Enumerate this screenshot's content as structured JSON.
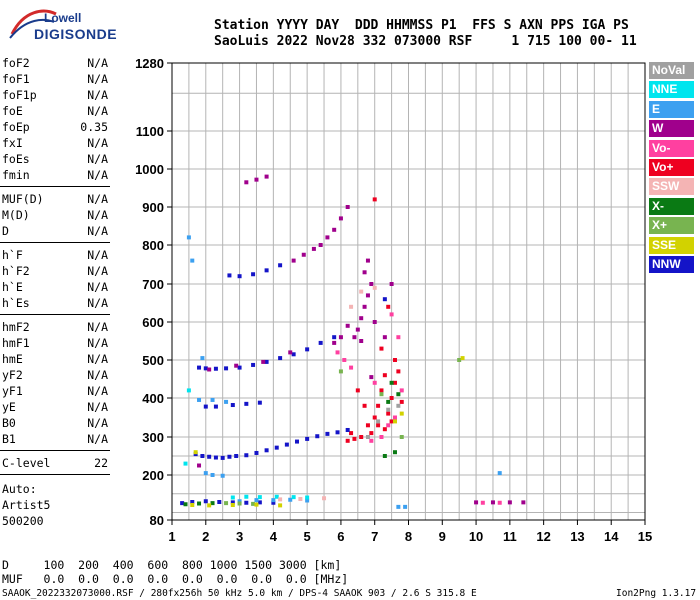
{
  "logo": {
    "line1": "Lowell",
    "line2": "DIGISONDE"
  },
  "header": {
    "row1": "Station YYYY DAY  DDD HHMMSS P1  FFS S AXN PPS IGA PS",
    "row2": "SaoLuis 2022 Nov28 332 073000 RSF     1 715 100 00- 11"
  },
  "params_group1": [
    {
      "label": "foF2",
      "value": "N/A"
    },
    {
      "label": "foF1",
      "value": "N/A"
    },
    {
      "label": "foF1p",
      "value": "N/A"
    },
    {
      "label": "foE",
      "value": "N/A"
    },
    {
      "label": "foEp",
      "value": "0.35"
    },
    {
      "label": "fxI",
      "value": "N/A"
    },
    {
      "label": "foEs",
      "value": "N/A"
    },
    {
      "label": "fmin",
      "value": "N/A"
    }
  ],
  "params_group2": [
    {
      "label": "MUF(D)",
      "value": "N/A"
    },
    {
      "label": "M(D)",
      "value": "N/A"
    },
    {
      "label": "D",
      "value": "N/A"
    }
  ],
  "params_group3": [
    {
      "label": "h`F",
      "value": "N/A"
    },
    {
      "label": "h`F2",
      "value": "N/A"
    },
    {
      "label": "h`E",
      "value": "N/A"
    },
    {
      "label": "h`Es",
      "value": "N/A"
    }
  ],
  "params_group4": [
    {
      "label": "hmF2",
      "value": "N/A"
    },
    {
      "label": "hmF1",
      "value": "N/A"
    },
    {
      "label": "hmE",
      "value": "N/A"
    },
    {
      "label": "yF2",
      "value": "N/A"
    },
    {
      "label": "yF1",
      "value": "N/A"
    },
    {
      "label": "yE",
      "value": "N/A"
    },
    {
      "label": "B0",
      "value": "N/A"
    },
    {
      "label": "B1",
      "value": "N/A"
    }
  ],
  "params_group5": [
    {
      "label": "C-level",
      "value": "22"
    }
  ],
  "autoscaling": [
    "Auto:",
    "Artist5",
    "500200"
  ],
  "legend": [
    {
      "label": "NoVal",
      "color": "#a0a0a0"
    },
    {
      "label": "NNE",
      "color": "#00e5ee"
    },
    {
      "label": "E",
      "color": "#3ca0f0"
    },
    {
      "label": "W",
      "color": "#a0008c"
    },
    {
      "label": "Vo-",
      "color": "#ff40a0"
    },
    {
      "label": "Vo+",
      "color": "#ee0020"
    },
    {
      "label": "SSW",
      "color": "#f4b4b4"
    },
    {
      "label": "X-",
      "color": "#0a7a14"
    },
    {
      "label": "X+",
      "color": "#78b450"
    },
    {
      "label": "SSE",
      "color": "#d2d200"
    },
    {
      "label": "NNW",
      "color": "#1414c8"
    }
  ],
  "bottom": {
    "d_row": "D     100  200  400  600  800 1000 1500 3000 [km]",
    "muf_row": "MUF   0.0  0.0  0.0  0.0  0.0  0.0  0.0  0.0 [MHz]"
  },
  "footer": {
    "left": "SAAOK_2022332073000.RSF / 280fx256h 50 kHz 5.0 km / DPS-4 SAAOK 903 / 2.6 S 315.8 E",
    "right": "Ion2Png 1.3.17"
  },
  "chart_data": {
    "type": "scatter",
    "title": "",
    "xlabel": "",
    "ylabel": "",
    "xlim": [
      1,
      15
    ],
    "ylim": [
      80,
      1280
    ],
    "x_ticks": [
      "1",
      "2",
      "3",
      "4",
      "5",
      "6",
      "7",
      "8",
      "9",
      "10",
      "11",
      "12",
      "13",
      "14",
      "15"
    ],
    "y_ticks": [
      {
        "value": 1280,
        "label": "1280"
      },
      {
        "value": 1100,
        "label": "1100"
      },
      {
        "value": 1000,
        "label": "1000"
      },
      {
        "value": 900,
        "label": "900"
      },
      {
        "value": 800,
        "label": "800"
      },
      {
        "value": 700,
        "label": "700"
      },
      {
        "value": 600,
        "label": "600"
      },
      {
        "value": 500,
        "label": "500"
      },
      {
        "value": 400,
        "label": "400"
      },
      {
        "value": 300,
        "label": "300"
      },
      {
        "value": 200,
        "label": "200"
      },
      {
        "value": 80,
        "label": "80"
      }
    ],
    "y_grid": [
      1200,
      1100,
      1000,
      900,
      800,
      700,
      600,
      500,
      400,
      300,
      250,
      200,
      150,
      100
    ],
    "x_grid": [
      1.5,
      2,
      2.5,
      3,
      3.5,
      4,
      4.5,
      5,
      5.5,
      6,
      6.5,
      7,
      7.5,
      8,
      8.5,
      9,
      9.5,
      10,
      10.5,
      11,
      11.5,
      12,
      12.5,
      13,
      13.5,
      14,
      14.5
    ],
    "series": [
      {
        "name": "Vo+",
        "color": "#ee0020",
        "points": [
          [
            7.0,
            350
          ],
          [
            7.1,
            380
          ],
          [
            7.2,
            420
          ],
          [
            7.3,
            460
          ],
          [
            7.4,
            360
          ],
          [
            7.5,
            400
          ],
          [
            7.6,
            440
          ],
          [
            7.7,
            470
          ],
          [
            7.8,
            390
          ],
          [
            7.1,
            330
          ],
          [
            7.3,
            320
          ],
          [
            7.5,
            340
          ],
          [
            6.8,
            330
          ],
          [
            6.9,
            310
          ],
          [
            6.6,
            300
          ],
          [
            6.4,
            295
          ],
          [
            6.2,
            290
          ],
          [
            7.0,
            920
          ],
          [
            7.4,
            640
          ],
          [
            7.2,
            530
          ],
          [
            7.6,
            500
          ],
          [
            6.5,
            420
          ],
          [
            6.7,
            380
          ],
          [
            6.3,
            310
          ]
        ]
      },
      {
        "name": "NNW",
        "color": "#1414c8",
        "points": [
          [
            1.7,
            255
          ],
          [
            1.9,
            250
          ],
          [
            2.1,
            248
          ],
          [
            2.3,
            246
          ],
          [
            2.5,
            245
          ],
          [
            2.7,
            248
          ],
          [
            2.9,
            250
          ],
          [
            3.2,
            252
          ],
          [
            3.5,
            258
          ],
          [
            3.8,
            265
          ],
          [
            4.1,
            272
          ],
          [
            4.4,
            280
          ],
          [
            4.7,
            288
          ],
          [
            5.0,
            295
          ],
          [
            5.3,
            302
          ],
          [
            5.6,
            308
          ],
          [
            5.9,
            312
          ],
          [
            6.2,
            318
          ],
          [
            1.8,
            480
          ],
          [
            2.0,
            478
          ],
          [
            2.3,
            477
          ],
          [
            2.6,
            478
          ],
          [
            3.0,
            480
          ],
          [
            3.4,
            487
          ],
          [
            3.8,
            495
          ],
          [
            4.2,
            505
          ],
          [
            4.6,
            515
          ],
          [
            5.0,
            528
          ],
          [
            5.4,
            545
          ],
          [
            5.8,
            560
          ],
          [
            2.0,
            378
          ],
          [
            2.3,
            378
          ],
          [
            2.8,
            382
          ],
          [
            3.2,
            385
          ],
          [
            3.6,
            388
          ],
          [
            2.7,
            722
          ],
          [
            3.0,
            720
          ],
          [
            3.4,
            725
          ],
          [
            3.8,
            735
          ],
          [
            4.2,
            748
          ],
          [
            1.3,
            125
          ],
          [
            1.6,
            128
          ],
          [
            2.0,
            130
          ],
          [
            2.4,
            128
          ],
          [
            2.8,
            127
          ],
          [
            3.2,
            126
          ],
          [
            3.6,
            127
          ],
          [
            4.0,
            126
          ],
          [
            7.3,
            660
          ]
        ]
      },
      {
        "name": "W",
        "color": "#a0008c",
        "points": [
          [
            6.5,
            580
          ],
          [
            6.6,
            610
          ],
          [
            6.7,
            640
          ],
          [
            6.8,
            670
          ],
          [
            6.9,
            700
          ],
          [
            6.6,
            550
          ],
          [
            6.4,
            560
          ],
          [
            6.2,
            590
          ],
          [
            6.0,
            560
          ],
          [
            5.8,
            545
          ],
          [
            6.8,
            760
          ],
          [
            6.7,
            730
          ],
          [
            5.6,
            820
          ],
          [
            5.8,
            840
          ],
          [
            6.0,
            870
          ],
          [
            6.2,
            900
          ],
          [
            5.2,
            790
          ],
          [
            5.4,
            800
          ],
          [
            4.6,
            760
          ],
          [
            4.9,
            775
          ],
          [
            3.2,
            965
          ],
          [
            3.5,
            972
          ],
          [
            3.8,
            980
          ],
          [
            6.9,
            455
          ],
          [
            7.0,
            600
          ],
          [
            2.9,
            485
          ],
          [
            3.7,
            495
          ],
          [
            4.5,
            520
          ],
          [
            2.1,
            475
          ],
          [
            1.8,
            225
          ],
          [
            10.0,
            127
          ],
          [
            10.5,
            127
          ],
          [
            11.0,
            127
          ],
          [
            11.4,
            127
          ],
          [
            7.5,
            700
          ],
          [
            7.3,
            560
          ]
        ]
      },
      {
        "name": "Vo-",
        "color": "#ff40a0",
        "points": [
          [
            7.2,
            300
          ],
          [
            7.4,
            330
          ],
          [
            7.6,
            350
          ],
          [
            6.9,
            290
          ],
          [
            7.5,
            620
          ],
          [
            7.7,
            560
          ],
          [
            6.3,
            480
          ],
          [
            6.1,
            500
          ],
          [
            5.9,
            520
          ],
          [
            7.0,
            440
          ],
          [
            7.8,
            420
          ],
          [
            10.2,
            126
          ],
          [
            10.7,
            126
          ]
        ]
      },
      {
        "name": "E",
        "color": "#3ca0f0",
        "points": [
          [
            1.5,
            820
          ],
          [
            1.6,
            760
          ],
          [
            1.9,
            505
          ],
          [
            1.8,
            395
          ],
          [
            2.2,
            395
          ],
          [
            2.6,
            390
          ],
          [
            3.0,
            130
          ],
          [
            3.5,
            133
          ],
          [
            4.0,
            133
          ],
          [
            4.5,
            134
          ],
          [
            5.0,
            132
          ],
          [
            7.7,
            115
          ],
          [
            7.9,
            115
          ],
          [
            2.0,
            205
          ],
          [
            2.2,
            200
          ],
          [
            2.5,
            198
          ],
          [
            10.7,
            205
          ]
        ]
      },
      {
        "name": "NNE",
        "color": "#00e5ee",
        "points": [
          [
            2.8,
            140
          ],
          [
            3.2,
            142
          ],
          [
            3.6,
            141
          ],
          [
            4.1,
            142
          ],
          [
            4.6,
            141
          ],
          [
            5.0,
            140
          ],
          [
            1.4,
            230
          ],
          [
            1.5,
            420
          ]
        ]
      },
      {
        "name": "X-",
        "color": "#0a7a14",
        "points": [
          [
            7.3,
            250
          ],
          [
            7.6,
            260
          ],
          [
            1.4,
            122
          ],
          [
            1.8,
            124
          ],
          [
            2.2,
            125
          ],
          [
            7.4,
            390
          ],
          [
            7.7,
            410
          ],
          [
            7.5,
            440
          ]
        ]
      },
      {
        "name": "X+",
        "color": "#78b450",
        "points": [
          [
            2.6,
            125
          ],
          [
            3.0,
            124
          ],
          [
            3.4,
            123
          ],
          [
            7.8,
            300
          ],
          [
            7.2,
            410
          ],
          [
            9.5,
            500
          ],
          [
            6.0,
            470
          ]
        ]
      },
      {
        "name": "SSE",
        "color": "#d2d200",
        "points": [
          [
            1.6,
            120
          ],
          [
            2.1,
            119
          ],
          [
            2.8,
            120
          ],
          [
            3.5,
            121
          ],
          [
            4.2,
            119
          ],
          [
            7.6,
            340
          ],
          [
            7.8,
            360
          ],
          [
            1.7,
            260
          ],
          [
            9.6,
            505
          ]
        ]
      },
      {
        "name": "SSW",
        "color": "#f4b4b4",
        "points": [
          [
            4.2,
            135
          ],
          [
            4.8,
            136
          ],
          [
            5.5,
            138
          ],
          [
            7.0,
            690
          ],
          [
            6.6,
            680
          ],
          [
            6.3,
            640
          ]
        ]
      },
      {
        "name": "NoVal",
        "color": "#a0a0a0",
        "points": [
          [
            7.1,
            340
          ],
          [
            7.4,
            370
          ],
          [
            7.7,
            380
          ],
          [
            6.8,
            300
          ]
        ]
      }
    ]
  }
}
